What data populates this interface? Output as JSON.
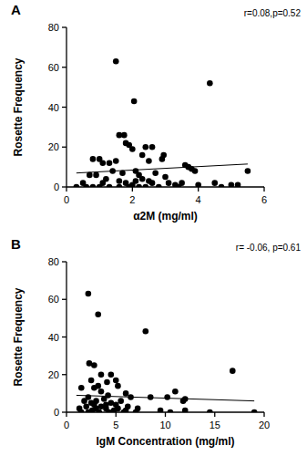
{
  "chart_data": [
    {
      "type": "scatter",
      "title": "A",
      "annotation": "r=0.08,p=0.52",
      "x_label": "α2M (mg/ml)",
      "y_label": "Rosette Frequency",
      "color": "#000000",
      "marker": "circle",
      "x": [
        1.5,
        4.35,
        2.05,
        1.6,
        1.75,
        1.8,
        1.9,
        2.4,
        2.6,
        2.0,
        0.8,
        1.0,
        1.1,
        1.3,
        2.9,
        2.95,
        2.3,
        1.5,
        2.5,
        3.6,
        3.7,
        3.8,
        3.9,
        5.5,
        0.7,
        0.9,
        1.4,
        1.7,
        2.1,
        2.2,
        2.7,
        3.0,
        1.2,
        1.6,
        2.3,
        2.5,
        0.5,
        1.1,
        1.8,
        2.0,
        2.6,
        3.1,
        3.3,
        0.3,
        0.6,
        0.8,
        1.0,
        1.3,
        1.6,
        1.9,
        2.2,
        2.4,
        2.8,
        3.4,
        4.0,
        4.5,
        4.7,
        5.0,
        5.2,
        3.5,
        2.1
      ],
      "y": [
        63,
        52,
        43,
        26,
        26,
        22,
        21,
        20,
        20,
        19,
        14,
        14,
        12,
        12,
        14,
        16,
        16,
        13,
        13,
        11,
        10,
        9,
        8,
        8,
        6,
        6,
        8,
        7,
        8,
        6,
        7,
        5,
        4,
        3,
        4,
        3,
        2,
        2,
        2,
        1,
        2,
        2,
        1,
        0,
        0,
        0,
        0,
        0,
        0,
        0,
        0,
        0,
        0,
        0,
        1,
        2,
        0,
        1,
        1,
        2,
        3
      ],
      "trend": {
        "x": [
          0.3,
          5.5
        ],
        "y": [
          7,
          11.5
        ]
      },
      "xlim": [
        0,
        6
      ],
      "xticks": [
        0,
        2,
        4,
        6
      ],
      "ylim": [
        0,
        80
      ],
      "yticks": [
        0,
        20,
        40,
        60,
        80
      ]
    },
    {
      "type": "scatter",
      "title": "B",
      "annotation": "r= -0.06, p=0.61",
      "x_label": "IgM Concentration (mg/ml)",
      "y_label": "Rosette Frequency",
      "color": "#000000",
      "marker": "circle",
      "x": [
        2.2,
        3.2,
        8,
        16.8,
        2.3,
        2.8,
        3.5,
        4.5,
        5,
        2.5,
        1.5,
        2.8,
        3.2,
        4.1,
        5.2,
        6,
        6.5,
        3.5,
        11,
        11.8,
        12,
        10.2,
        8.5,
        4.2,
        2.2,
        1.8,
        2.5,
        3,
        3.8,
        4.5,
        5,
        5.5,
        6.2,
        1.3,
        2,
        2.6,
        3,
        3.5,
        4,
        4.8,
        5.2,
        6,
        7,
        9.5,
        10.5,
        12,
        14.5,
        19,
        1.5,
        2.2,
        3.3,
        4.3,
        5.8,
        2.8,
        4,
        7.2
      ],
      "y": [
        63,
        52,
        43,
        22,
        26,
        25,
        20,
        20,
        17,
        17,
        13,
        13,
        14,
        16,
        14,
        10,
        8,
        11,
        11,
        6,
        7,
        8,
        8,
        9,
        8,
        6,
        5,
        6,
        7,
        5,
        4,
        6,
        3,
        2,
        3,
        1,
        2,
        3,
        2,
        1,
        2,
        1,
        0,
        1,
        0,
        1,
        0,
        0,
        0,
        0,
        0,
        0,
        0,
        4,
        4,
        2
      ],
      "trend": {
        "x": [
          1,
          19
        ],
        "y": [
          9,
          6
        ]
      },
      "xlim": [
        0,
        20
      ],
      "xticks": [
        0,
        5,
        10,
        15,
        20
      ],
      "ylim": [
        0,
        80
      ],
      "yticks": [
        0,
        20,
        40,
        60,
        80
      ]
    }
  ]
}
